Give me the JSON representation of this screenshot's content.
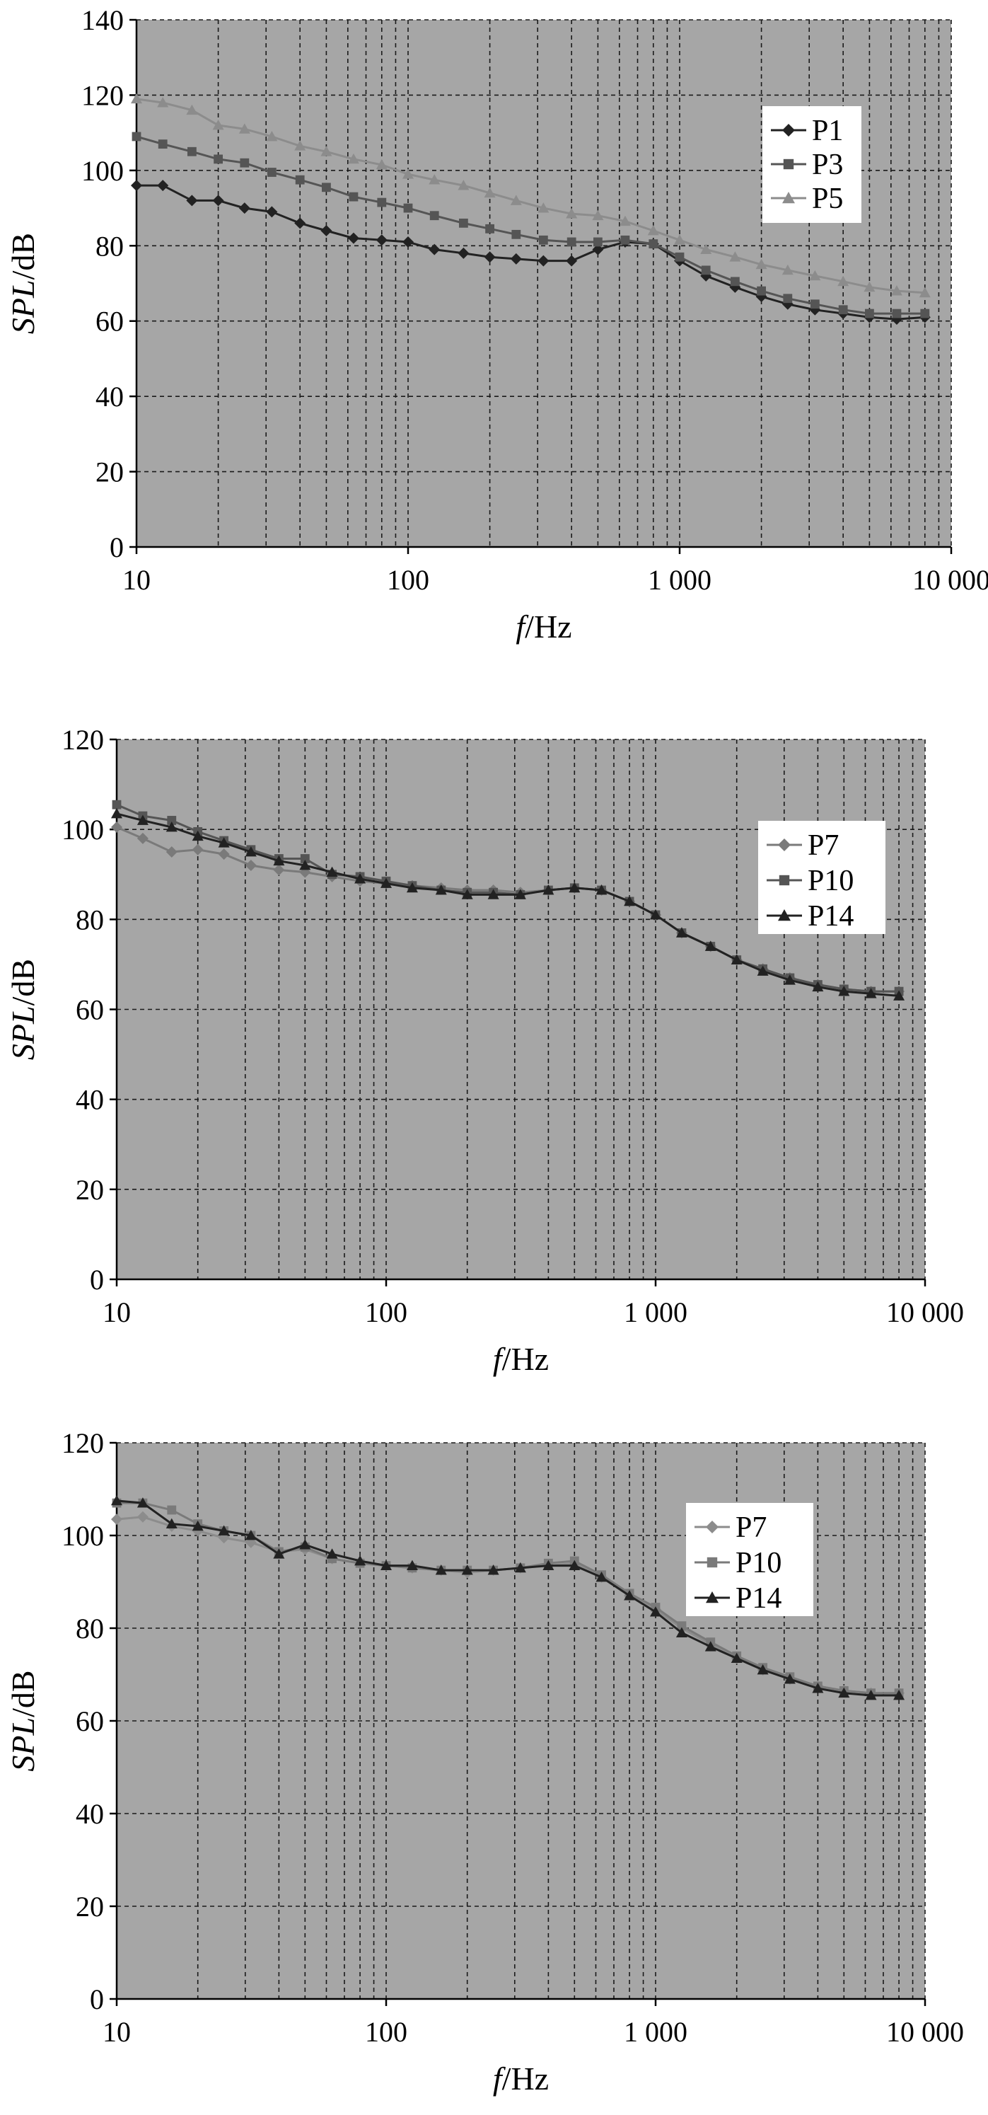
{
  "colors": {
    "plot_bg": "#a6a6a6",
    "grid": "#1a1a1a",
    "dark": "#222222",
    "mid": "#555555",
    "light": "#7a7a7a",
    "pale": "#8c8c8c"
  },
  "chart_data": [
    {
      "type": "line",
      "x_scale": "log",
      "xlim": [
        10,
        10000
      ],
      "ylim": [
        0,
        140
      ],
      "yticks": [
        0,
        20,
        40,
        60,
        80,
        100,
        120,
        140
      ],
      "xtick_labels": [
        "10",
        "100",
        "1 000",
        "10 000"
      ],
      "xlabel": {
        "italic": "f",
        "rest": "/Hz"
      },
      "ylabel": {
        "italic": "SPL",
        "rest": "/dB"
      },
      "grid": true,
      "legend_position": "upper-right",
      "x": [
        10,
        12.5,
        16,
        20,
        25,
        31.5,
        40,
        50,
        63,
        80,
        100,
        125,
        160,
        200,
        250,
        315,
        400,
        500,
        630,
        800,
        1000,
        1250,
        1600,
        2000,
        2500,
        3150,
        4000,
        5000,
        6300,
        8000
      ],
      "series": [
        {
          "name": "P1",
          "color": "dark",
          "marker": "diamond",
          "values": [
            96,
            96,
            92,
            92,
            90,
            89,
            86,
            84,
            82,
            81.5,
            81,
            79,
            78,
            77,
            76.5,
            76,
            76,
            79,
            81,
            80.5,
            76,
            72,
            69,
            66.5,
            64.5,
            63,
            62,
            61,
            60.5,
            61
          ]
        },
        {
          "name": "P3",
          "color": "mid",
          "marker": "square",
          "values": [
            109,
            107,
            105,
            103,
            102,
            99.5,
            97.5,
            95.5,
            93,
            91.5,
            90,
            88,
            86,
            84.5,
            83,
            81.5,
            81,
            81,
            81.5,
            80.5,
            77,
            73.5,
            70.5,
            68,
            66,
            64.5,
            63,
            62,
            62,
            62
          ]
        },
        {
          "name": "P5",
          "color": "pale",
          "marker": "triangle",
          "values": [
            119,
            118,
            116,
            112,
            111,
            109,
            106.5,
            105,
            103,
            101.5,
            99,
            97.5,
            96,
            94,
            92,
            90,
            88.5,
            88,
            86.5,
            84,
            81.5,
            79,
            77,
            75,
            73.5,
            72,
            70.5,
            69,
            68,
            67.5
          ]
        }
      ]
    },
    {
      "type": "line",
      "x_scale": "log",
      "xlim": [
        10,
        10000
      ],
      "ylim": [
        0,
        120
      ],
      "yticks": [
        0,
        20,
        40,
        60,
        80,
        100,
        120
      ],
      "xtick_labels": [
        "10",
        "100",
        "1 000",
        "10 000"
      ],
      "xlabel": {
        "italic": "f",
        "rest": "/Hz"
      },
      "ylabel": {
        "italic": "SPL",
        "rest": "/dB"
      },
      "grid": true,
      "legend_position": "right",
      "x": [
        10,
        12.5,
        16,
        20,
        25,
        31.5,
        40,
        50,
        63,
        80,
        100,
        125,
        160,
        200,
        250,
        315,
        400,
        500,
        630,
        800,
        1000,
        1250,
        1600,
        2000,
        2500,
        3150,
        4000,
        5000,
        6300,
        8000
      ],
      "series": [
        {
          "name": "P7",
          "color": "light",
          "marker": "diamond",
          "values": [
            100.5,
            98,
            95,
            95.5,
            94.5,
            92,
            91,
            90.5,
            89.5,
            88.5,
            88,
            87.5,
            87,
            86.5,
            86.5,
            86,
            86.5,
            87,
            86.5,
            84,
            81,
            77,
            74,
            71,
            69,
            67,
            65.5,
            64.5,
            64,
            64
          ]
        },
        {
          "name": "P10",
          "color": "mid",
          "marker": "square",
          "values": [
            105.5,
            103,
            102,
            99.5,
            97.5,
            95.5,
            93.5,
            93.5,
            90,
            89.5,
            88.5,
            87.5,
            86.5,
            86,
            86,
            85.5,
            86.5,
            87,
            86.5,
            84,
            81,
            77,
            74,
            71,
            69,
            67,
            65.5,
            64.5,
            64,
            64
          ]
        },
        {
          "name": "P14",
          "color": "dark",
          "marker": "triangle",
          "values": [
            103.5,
            102,
            100.5,
            98.5,
            97,
            95,
            93,
            92,
            90.5,
            89,
            88,
            87,
            86.5,
            85.5,
            85.5,
            85.5,
            86.5,
            87,
            86.5,
            84,
            81,
            77,
            74,
            71,
            68.5,
            66.5,
            65,
            64,
            63.5,
            63
          ]
        }
      ]
    },
    {
      "type": "line",
      "x_scale": "log",
      "xlim": [
        10,
        10000
      ],
      "ylim": [
        0,
        120
      ],
      "yticks": [
        0,
        20,
        40,
        60,
        80,
        100,
        120
      ],
      "xtick_labels": [
        "10",
        "100",
        "1 000",
        "10 000"
      ],
      "xlabel": {
        "italic": "f",
        "rest": "/Hz"
      },
      "ylabel": {
        "italic": "SPL",
        "rest": "/dB"
      },
      "grid": true,
      "legend_position": "upper-right",
      "x": [
        10,
        12.5,
        16,
        20,
        25,
        31.5,
        40,
        50,
        63,
        80,
        100,
        125,
        160,
        200,
        250,
        315,
        400,
        500,
        630,
        800,
        1000,
        1250,
        1600,
        2000,
        2500,
        3150,
        4000,
        5000,
        6300,
        8000
      ],
      "series": [
        {
          "name": "P7",
          "color": "pale",
          "marker": "diamond",
          "values": [
            103.5,
            104,
            102,
            101,
            99.5,
            98.5,
            96.5,
            97,
            95,
            94,
            93.5,
            93,
            92.5,
            92,
            92.5,
            93,
            93.5,
            94,
            91,
            87,
            84,
            80,
            76.5,
            73.5,
            71,
            69,
            67.5,
            66.5,
            66,
            66
          ]
        },
        {
          "name": "P10",
          "color": "light",
          "marker": "square",
          "values": [
            107,
            107,
            105.5,
            102.5,
            101,
            100,
            96.5,
            97.5,
            95,
            94,
            93.5,
            93,
            92.5,
            92.5,
            92.5,
            93,
            94,
            94.5,
            91.5,
            87.5,
            84.5,
            80.5,
            77,
            74,
            71.5,
            69.5,
            67.5,
            66.5,
            66,
            66
          ]
        },
        {
          "name": "P14",
          "color": "dark",
          "marker": "triangle",
          "values": [
            107.5,
            107,
            102.5,
            102,
            101,
            100,
            96,
            98,
            96,
            94.5,
            93.5,
            93.5,
            92.5,
            92.5,
            92.5,
            93,
            93.5,
            93.5,
            91,
            87,
            83.5,
            79,
            76,
            73.5,
            71,
            69,
            67,
            66,
            65.5,
            65.5
          ]
        }
      ]
    }
  ]
}
